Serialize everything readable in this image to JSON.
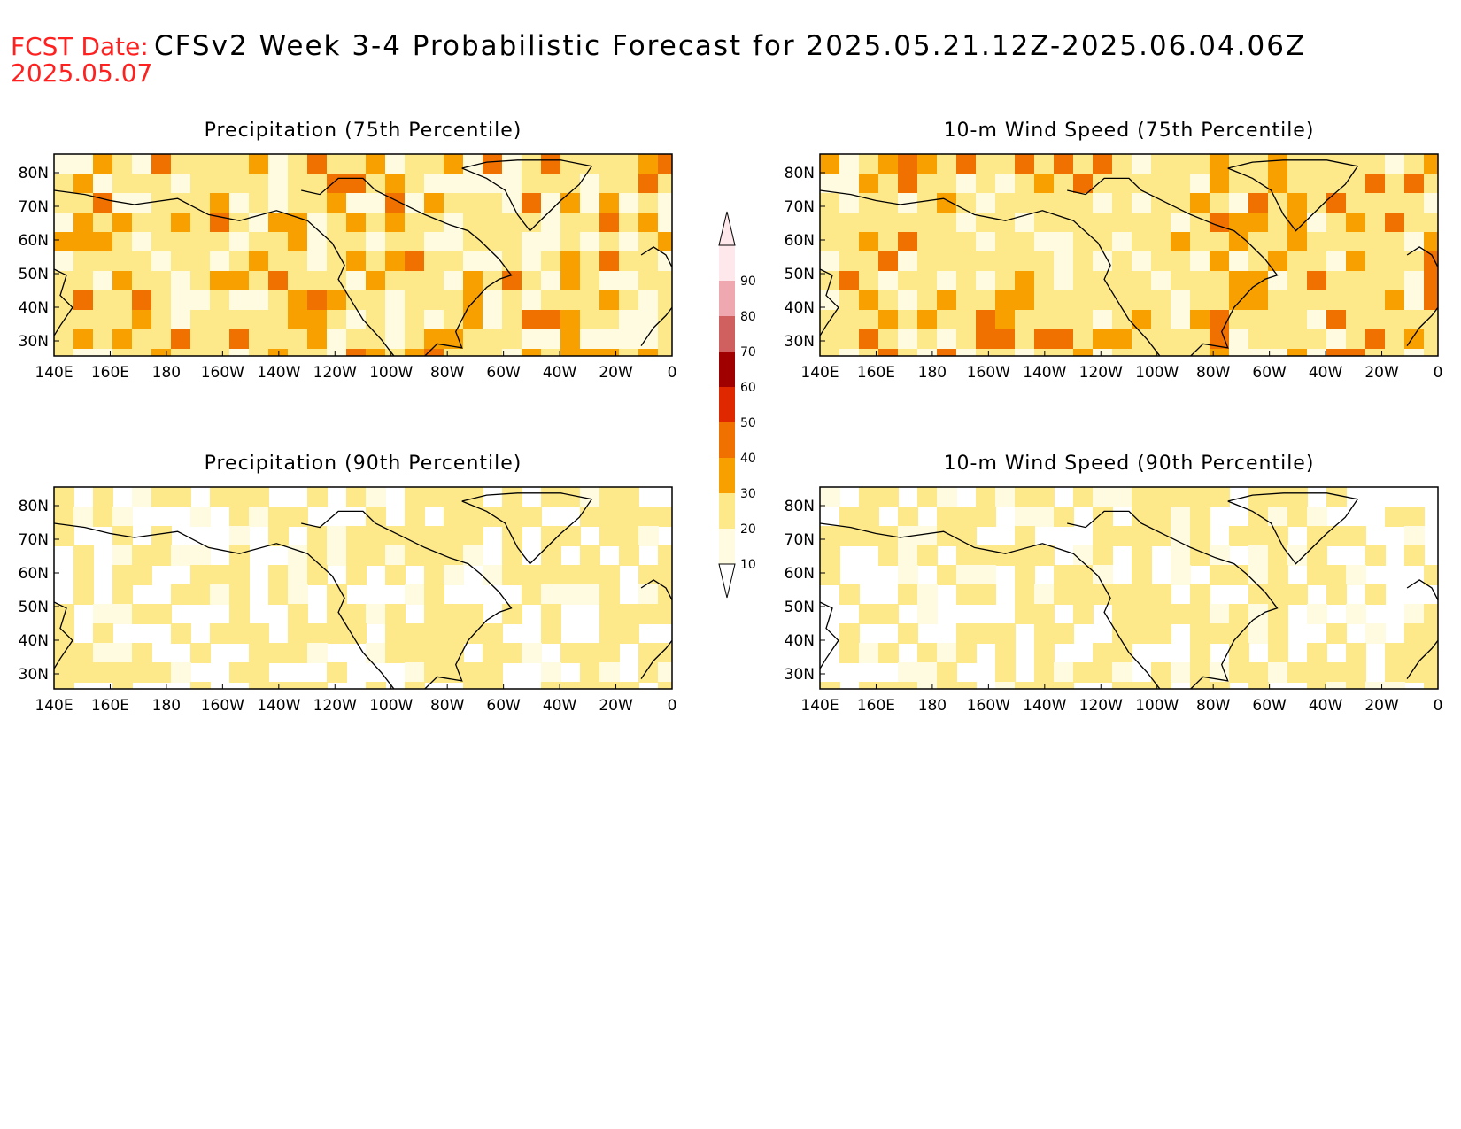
{
  "header": {
    "fcst_label": "FCST Date:",
    "fcst_date": "2025.05.07",
    "title": "CFSv2 Week 3-4 Probabilistic Forecast for 2025.05.21.12Z-2025.06.04.06Z"
  },
  "panels": [
    {
      "title": "Precipitation (75th Percentile)",
      "intensity": 0.55
    },
    {
      "title": "10-m Wind Speed (75th Percentile)",
      "intensity": 0.6
    },
    {
      "title": "Precipitation (90th Percentile)",
      "intensity": 0.15
    },
    {
      "title": "10-m Wind Speed (90th Percentile)",
      "intensity": 0.12
    }
  ],
  "axes": {
    "lon_labels": [
      "140E",
      "160E",
      "180",
      "160W",
      "140W",
      "120W",
      "100W",
      "80W",
      "60W",
      "40W",
      "20W",
      "0"
    ],
    "lat_labels": [
      "80N",
      "70N",
      "60N",
      "50N",
      "40N",
      "30N"
    ]
  },
  "colorbar": {
    "levels": [
      "10",
      "20",
      "30",
      "40",
      "50",
      "60",
      "70",
      "80",
      "90"
    ],
    "colors": [
      "#fffbe0",
      "#fde88a",
      "#f7a000",
      "#f07000",
      "#e02800",
      "#a00000",
      "#d06060",
      "#f0a8b0",
      "#ffe8ec"
    ]
  }
}
